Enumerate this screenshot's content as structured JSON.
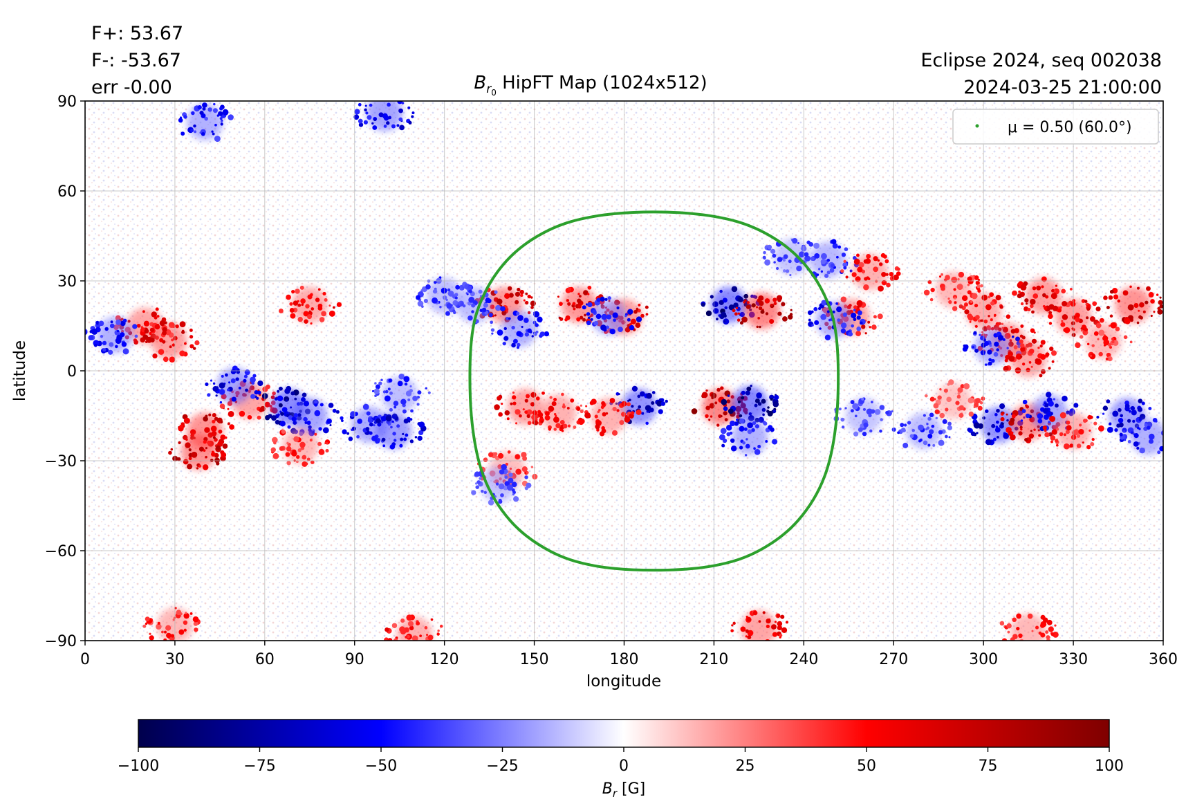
{
  "header": {
    "fplus": "F+: 53.67",
    "fminus": "F-: -53.67",
    "err": "err -0.00",
    "title_symbol": "B",
    "title_subscript": "r",
    "title_subsubscript": "0",
    "title_rest": " HipFT Map (1024x512)",
    "event": "Eclipse 2024, seq 002038",
    "timestamp": "2024-03-25 21:00:00"
  },
  "chart_data": {
    "type": "heatmap",
    "title": "B_r0 HipFT Map (1024x512)",
    "xlabel": "longitude",
    "ylabel": "latitude",
    "xlim": [
      0,
      360
    ],
    "ylim": [
      -90,
      90
    ],
    "xticks": [
      0,
      30,
      60,
      90,
      120,
      150,
      180,
      210,
      240,
      270,
      300,
      330,
      360
    ],
    "yticks": [
      -90,
      -60,
      -30,
      0,
      30,
      60,
      90
    ],
    "ytick_labels": [
      "−90",
      "−60",
      "−30",
      "0",
      "30",
      "60",
      "90"
    ],
    "grid": true,
    "colormap": "seismic",
    "colormap_stops": [
      "#00004c",
      "#0000ff",
      "#ffffff",
      "#ff0000",
      "#7f0000"
    ],
    "colorbar": {
      "label_symbol": "B",
      "label_subscript": "r",
      "label_unit": " [G]",
      "range": [
        -100,
        100
      ],
      "ticks": [
        -100,
        -75,
        -50,
        -25,
        0,
        25,
        50,
        75,
        100
      ],
      "tick_labels": [
        "−100",
        "−75",
        "−50",
        "−25",
        "0",
        "25",
        "50",
        "75",
        "100"
      ]
    },
    "legend": {
      "position": "top-right",
      "label": "μ = 0.50 (60.0°)",
      "color": "#2ca02c"
    },
    "disk_contour": {
      "name": "μ = 0.50 (60.0°)",
      "color": "#2ca02c",
      "lon": [
        190,
        170,
        155,
        142,
        133,
        129,
        129,
        133,
        142,
        155,
        170,
        190,
        210,
        225,
        238,
        247,
        251,
        251,
        247,
        238,
        225,
        210,
        190
      ],
      "lat": [
        53,
        51.5,
        47,
        38,
        25,
        10,
        -15,
        -35,
        -50,
        -60,
        -65,
        -66.5,
        -65,
        -60,
        -50,
        -35,
        -15,
        10,
        25,
        38,
        47,
        51.5,
        53
      ]
    },
    "active_regions": [
      {
        "lon": 215,
        "lat": 22,
        "flux": -95
      },
      {
        "lon": 226,
        "lat": 20,
        "flux": 95
      },
      {
        "lon": 212,
        "lat": -12,
        "flux": 95
      },
      {
        "lon": 222,
        "lat": -11,
        "flux": -95
      },
      {
        "lon": 165,
        "lat": 22,
        "flux": 80
      },
      {
        "lon": 180,
        "lat": 18,
        "flux": 75
      },
      {
        "lon": 175,
        "lat": 18,
        "flux": -60
      },
      {
        "lon": 140,
        "lat": 22,
        "flux": 80
      },
      {
        "lon": 145,
        "lat": 14,
        "flux": -60
      },
      {
        "lon": 130,
        "lat": 22,
        "flux": -50
      },
      {
        "lon": 185,
        "lat": -12,
        "flux": -85
      },
      {
        "lon": 175,
        "lat": -15,
        "flux": 60
      },
      {
        "lon": 158,
        "lat": -14,
        "flux": 60
      },
      {
        "lon": 147,
        "lat": -12,
        "flux": 70
      },
      {
        "lon": 141,
        "lat": -33,
        "flux": 50
      },
      {
        "lon": 138,
        "lat": -38,
        "flux": -45
      },
      {
        "lon": 222,
        "lat": -22,
        "flux": -60
      },
      {
        "lon": 256,
        "lat": 18,
        "flux": 70
      },
      {
        "lon": 250,
        "lat": 17,
        "flux": -60
      },
      {
        "lon": 248,
        "lat": 37,
        "flux": -55
      },
      {
        "lon": 262,
        "lat": 33,
        "flux": 60
      },
      {
        "lon": 236,
        "lat": 38,
        "flux": -45
      },
      {
        "lon": 20,
        "lat": 15,
        "flux": 70
      },
      {
        "lon": 10,
        "lat": 12,
        "flux": -60
      },
      {
        "lon": 28,
        "lat": 10,
        "flux": 75
      },
      {
        "lon": 75,
        "lat": 22,
        "flux": 65
      },
      {
        "lon": 40,
        "lat": -20,
        "flux": 85
      },
      {
        "lon": 38,
        "lat": -27,
        "flux": 85
      },
      {
        "lon": 55,
        "lat": -10,
        "flux": 70
      },
      {
        "lon": 50,
        "lat": -5,
        "flux": -70
      },
      {
        "lon": 68,
        "lat": -12,
        "flux": -90
      },
      {
        "lon": 75,
        "lat": -15,
        "flux": -70
      },
      {
        "lon": 72,
        "lat": -25,
        "flux": 55
      },
      {
        "lon": 95,
        "lat": -18,
        "flux": -65
      },
      {
        "lon": 103,
        "lat": -20,
        "flux": -75
      },
      {
        "lon": 105,
        "lat": -8,
        "flux": -50
      },
      {
        "lon": 120,
        "lat": 25,
        "flux": -50
      },
      {
        "lon": 305,
        "lat": -18,
        "flux": -85
      },
      {
        "lon": 315,
        "lat": -17,
        "flux": 85
      },
      {
        "lon": 322,
        "lat": -14,
        "flux": -70
      },
      {
        "lon": 330,
        "lat": -20,
        "flux": 60
      },
      {
        "lon": 348,
        "lat": -15,
        "flux": -75
      },
      {
        "lon": 355,
        "lat": -22,
        "flux": -60
      },
      {
        "lon": 320,
        "lat": 25,
        "flux": 75
      },
      {
        "lon": 330,
        "lat": 18,
        "flux": 75
      },
      {
        "lon": 350,
        "lat": 22,
        "flux": 85
      },
      {
        "lon": 300,
        "lat": 20,
        "flux": 65
      },
      {
        "lon": 308,
        "lat": 10,
        "flux": 70
      },
      {
        "lon": 303,
        "lat": 8,
        "flux": -60
      },
      {
        "lon": 315,
        "lat": 4,
        "flux": 70
      },
      {
        "lon": 290,
        "lat": 27,
        "flux": 55
      },
      {
        "lon": 260,
        "lat": -15,
        "flux": -45
      },
      {
        "lon": 280,
        "lat": -20,
        "flux": -50
      },
      {
        "lon": 290,
        "lat": -10,
        "flux": 45
      },
      {
        "lon": 340,
        "lat": 10,
        "flux": 55
      },
      {
        "lon": 100,
        "lat": 86,
        "flux": -70
      },
      {
        "lon": 40,
        "lat": 83,
        "flux": -60
      },
      {
        "lon": 225,
        "lat": -86,
        "flux": 70
      },
      {
        "lon": 110,
        "lat": -88,
        "flux": 60
      },
      {
        "lon": 30,
        "lat": -85,
        "flux": 55
      },
      {
        "lon": 315,
        "lat": -87,
        "flux": 55
      }
    ]
  }
}
